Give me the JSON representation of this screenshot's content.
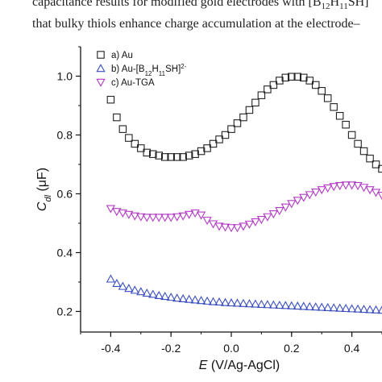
{
  "caption": {
    "line1_pre": "capacitance results for modified gold electrodes with [B",
    "line1_sub1": "12",
    "line1_mid": "H",
    "line1_sub2": "11",
    "line1_post": "SH]",
    "line2": "that bulky thiols enhance charge accumulation at the electrode–"
  },
  "chart_data": {
    "type": "scatter",
    "xlabel_symbol": "E",
    "xlabel_rest": " (V/Ag-AgCl)",
    "ylabel_symbol": "C",
    "ylabel_sub": "dl",
    "ylabel_rest": " (μF)",
    "xlim": [
      -0.5,
      0.5
    ],
    "ylim": [
      0.13,
      1.1
    ],
    "xticks": [
      -0.4,
      -0.2,
      0.0,
      0.2,
      0.4
    ],
    "xtick_labels": [
      "-0.4",
      "-0.2",
      "0.0",
      "0.2",
      "0.4"
    ],
    "yticks": [
      0.2,
      0.4,
      0.6,
      0.8,
      1.0
    ],
    "ytick_labels": [
      "0.2",
      "0.4",
      "0.6",
      "0.8",
      "1.0"
    ],
    "legend_position": "top-left",
    "series": [
      {
        "name": "a) Au",
        "marker": "square",
        "color": "#222222",
        "x": [
          -0.4,
          -0.38,
          -0.36,
          -0.34,
          -0.32,
          -0.3,
          -0.28,
          -0.26,
          -0.24,
          -0.22,
          -0.2,
          -0.18,
          -0.16,
          -0.14,
          -0.12,
          -0.1,
          -0.08,
          -0.06,
          -0.04,
          -0.02,
          0.0,
          0.02,
          0.04,
          0.06,
          0.08,
          0.1,
          0.12,
          0.14,
          0.16,
          0.18,
          0.2,
          0.22,
          0.24,
          0.26,
          0.28,
          0.3,
          0.32,
          0.34,
          0.36,
          0.38,
          0.4,
          0.42,
          0.44,
          0.46,
          0.48,
          0.5
        ],
        "y": [
          0.92,
          0.86,
          0.82,
          0.79,
          0.77,
          0.755,
          0.74,
          0.735,
          0.73,
          0.725,
          0.725,
          0.725,
          0.725,
          0.73,
          0.735,
          0.745,
          0.755,
          0.77,
          0.785,
          0.8,
          0.82,
          0.84,
          0.86,
          0.885,
          0.91,
          0.935,
          0.955,
          0.97,
          0.985,
          0.995,
          0.998,
          0.998,
          0.995,
          0.985,
          0.97,
          0.95,
          0.925,
          0.895,
          0.865,
          0.835,
          0.8,
          0.77,
          0.745,
          0.72,
          0.7,
          0.685
        ]
      },
      {
        "name": "b) Au-[B12H11SH]2-",
        "marker": "triangle-up",
        "color": "#3a4fbf",
        "x": [
          -0.4,
          -0.38,
          -0.36,
          -0.34,
          -0.32,
          -0.3,
          -0.28,
          -0.26,
          -0.24,
          -0.22,
          -0.2,
          -0.18,
          -0.16,
          -0.14,
          -0.12,
          -0.1,
          -0.08,
          -0.06,
          -0.04,
          -0.02,
          0.0,
          0.02,
          0.04,
          0.06,
          0.08,
          0.1,
          0.12,
          0.14,
          0.16,
          0.18,
          0.2,
          0.22,
          0.24,
          0.26,
          0.28,
          0.3,
          0.32,
          0.34,
          0.36,
          0.38,
          0.4,
          0.42,
          0.44,
          0.46,
          0.48,
          0.5
        ],
        "y": [
          0.31,
          0.295,
          0.285,
          0.278,
          0.272,
          0.267,
          0.262,
          0.258,
          0.254,
          0.251,
          0.248,
          0.245,
          0.243,
          0.241,
          0.239,
          0.237,
          0.235,
          0.233,
          0.232,
          0.23,
          0.229,
          0.228,
          0.227,
          0.226,
          0.225,
          0.224,
          0.223,
          0.222,
          0.221,
          0.22,
          0.219,
          0.218,
          0.217,
          0.216,
          0.215,
          0.214,
          0.213,
          0.212,
          0.211,
          0.21,
          0.209,
          0.208,
          0.207,
          0.206,
          0.205,
          0.204
        ]
      },
      {
        "name": "c) Au-TGA",
        "marker": "triangle-down",
        "color": "#b23bc4",
        "x": [
          -0.4,
          -0.38,
          -0.36,
          -0.34,
          -0.32,
          -0.3,
          -0.28,
          -0.26,
          -0.24,
          -0.22,
          -0.2,
          -0.18,
          -0.16,
          -0.14,
          -0.12,
          -0.1,
          -0.08,
          -0.06,
          -0.04,
          -0.02,
          0.0,
          0.02,
          0.04,
          0.06,
          0.08,
          0.1,
          0.12,
          0.14,
          0.16,
          0.18,
          0.2,
          0.22,
          0.24,
          0.26,
          0.28,
          0.3,
          0.32,
          0.34,
          0.36,
          0.38,
          0.4,
          0.42,
          0.44,
          0.46,
          0.48,
          0.5
        ],
        "y": [
          0.55,
          0.54,
          0.535,
          0.53,
          0.525,
          0.522,
          0.52,
          0.52,
          0.52,
          0.52,
          0.52,
          0.522,
          0.525,
          0.53,
          0.535,
          0.528,
          0.51,
          0.498,
          0.49,
          0.487,
          0.485,
          0.485,
          0.49,
          0.497,
          0.505,
          0.513,
          0.522,
          0.532,
          0.543,
          0.555,
          0.567,
          0.578,
          0.588,
          0.597,
          0.606,
          0.614,
          0.62,
          0.625,
          0.628,
          0.63,
          0.63,
          0.628,
          0.622,
          0.614,
          0.605,
          0.595
        ]
      }
    ],
    "legend": [
      {
        "label_pre": "a) Au",
        "label_sub": "",
        "label_mid": "",
        "label_sub2": "",
        "label_post": "",
        "label_sup": ""
      },
      {
        "label_pre": "b) Au-[B",
        "label_sub": "12",
        "label_mid": "H",
        "label_sub2": "11",
        "label_post": "SH]",
        "label_sup": "2-"
      },
      {
        "label_pre": "c) Au-TGA",
        "label_sub": "",
        "label_mid": "",
        "label_sub2": "",
        "label_post": "",
        "label_sup": ""
      }
    ]
  }
}
